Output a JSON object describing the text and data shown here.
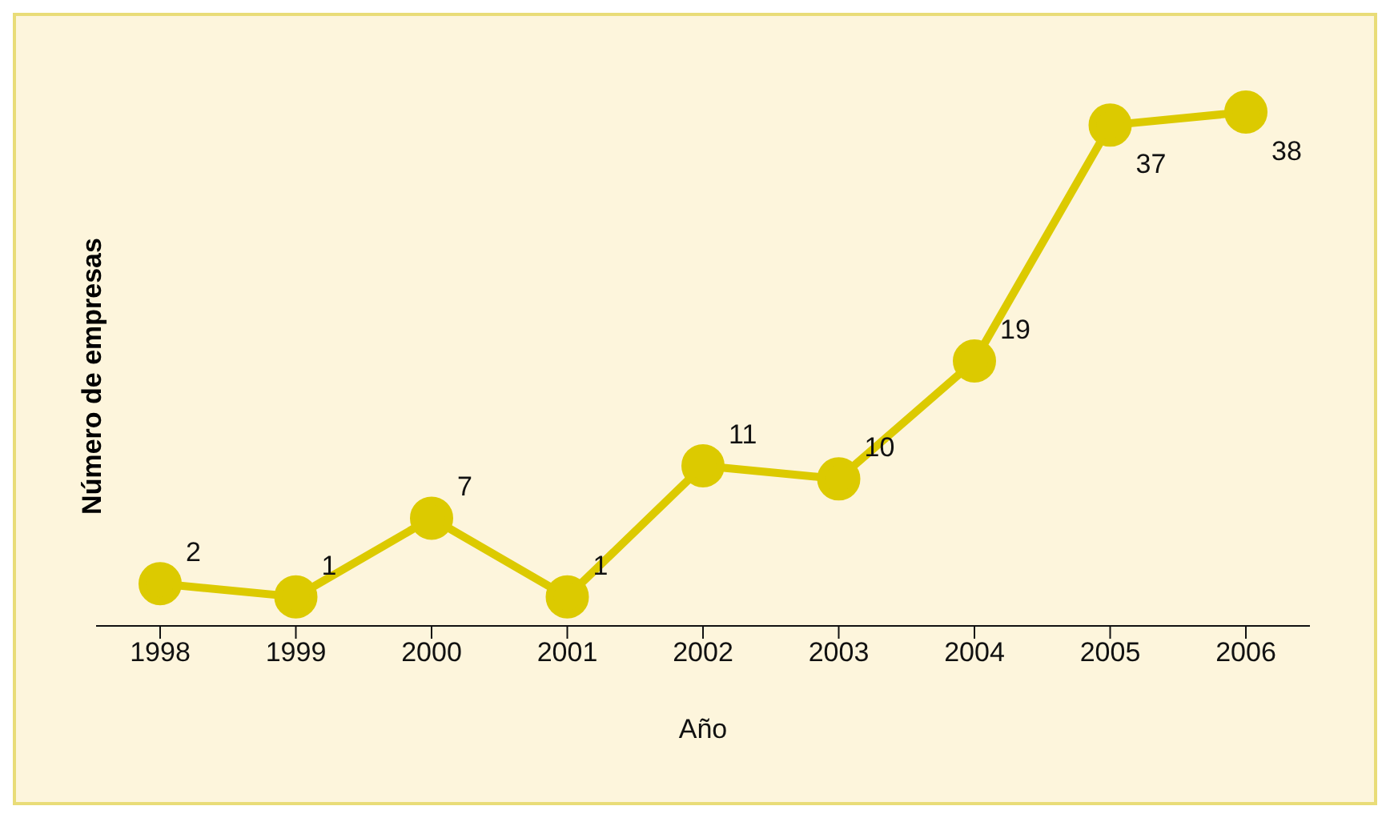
{
  "chart_data": {
    "type": "line",
    "xlabel": "Año",
    "ylabel": "Número de empresas",
    "categories": [
      "1998",
      "1999",
      "2000",
      "2001",
      "2002",
      "2003",
      "2004",
      "2005",
      "2006"
    ],
    "series": [
      {
        "color": "#dcca00",
        "values": [
          2,
          1,
          7,
          1,
          11,
          10,
          19,
          37,
          38
        ]
      }
    ],
    "data_labels": true,
    "marker": "circle",
    "line_style": "solid",
    "tick_labels": "x"
  }
}
